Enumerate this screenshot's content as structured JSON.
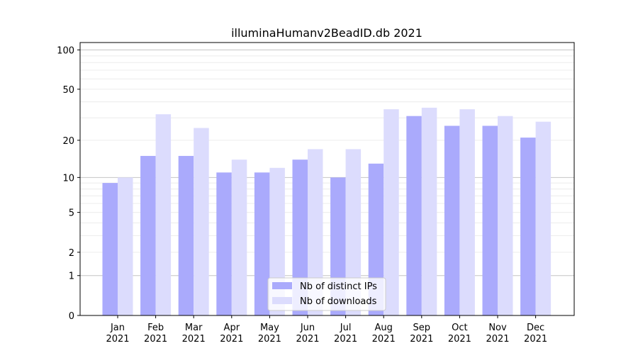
{
  "chart_data": {
    "type": "bar",
    "title": "illuminaHumanv2BeadID.db 2021",
    "xlabel": "",
    "ylabel": "",
    "y_scale": "log(x+1)",
    "ylim": [
      0,
      110
    ],
    "y_ticks": [
      0,
      1,
      2,
      5,
      10,
      20,
      50,
      100
    ],
    "grid": true,
    "legend_position": "bottom-center",
    "categories": [
      "Jan\n2021",
      "Feb\n2021",
      "Mar\n2021",
      "Apr\n2021",
      "May\n2021",
      "Jun\n2021",
      "Jul\n2021",
      "Aug\n2021",
      "Sep\n2021",
      "Oct\n2021",
      "Nov\n2021",
      "Dec\n2021"
    ],
    "series": [
      {
        "name": "Nb of distinct IPs",
        "color": "#aaaafc",
        "values": [
          9,
          15,
          15,
          11,
          11,
          14,
          10,
          13,
          31,
          26,
          26,
          21
        ]
      },
      {
        "name": "Nb of downloads",
        "color": "#dcdcfd",
        "values": [
          10,
          32,
          25,
          14,
          12,
          17,
          17,
          35,
          36,
          35,
          31,
          28
        ]
      }
    ]
  }
}
